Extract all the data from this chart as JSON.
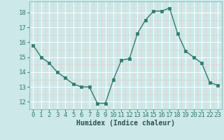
{
  "x": [
    0,
    1,
    2,
    3,
    4,
    5,
    6,
    7,
    8,
    9,
    10,
    11,
    12,
    13,
    14,
    15,
    16,
    17,
    18,
    19,
    20,
    21,
    22,
    23
  ],
  "y": [
    15.8,
    15.0,
    14.6,
    14.0,
    13.6,
    13.2,
    13.0,
    13.0,
    11.9,
    11.9,
    13.5,
    14.8,
    14.9,
    16.6,
    17.5,
    18.1,
    18.1,
    18.3,
    16.6,
    15.4,
    15.0,
    14.6,
    13.3,
    13.1
  ],
  "line_color": "#2e7d6e",
  "marker_color": "#2e7d6e",
  "bg_color": "#cce8e8",
  "grid_major_color": "#ffffff",
  "grid_minor_color": "#e8cccc",
  "xlabel": "Humidex (Indice chaleur)",
  "ylim": [
    11.5,
    18.75
  ],
  "xlim": [
    -0.5,
    23.5
  ],
  "yticks": [
    12,
    13,
    14,
    15,
    16,
    17,
    18
  ],
  "xticks": [
    0,
    1,
    2,
    3,
    4,
    5,
    6,
    7,
    8,
    9,
    10,
    11,
    12,
    13,
    14,
    15,
    16,
    17,
    18,
    19,
    20,
    21,
    22,
    23
  ],
  "xlabel_fontsize": 7,
  "tick_fontsize": 6.5,
  "linewidth": 1.0,
  "markersize": 2.5
}
